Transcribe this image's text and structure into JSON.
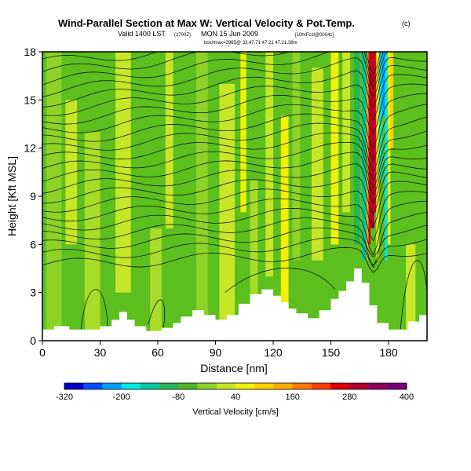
{
  "chart_data": {
    "type": "heatmap",
    "title": "Wind-Parallel Section at Max W: Vertical Velocity & Pot.Temp.",
    "title_suffix": "(c)",
    "subtitle_main": "Valid 1400 LST",
    "subtitle_paren": "(1700Z)",
    "subtitle_date": "MON 15 Jun 2009",
    "subtitle_tail": "[10hrFcst@0004z]",
    "info_line": "box/lmax=2965@ 33.47,71 47.21 47.21,38m",
    "xlabel": "Distance [nm]",
    "ylabel": "Height [Kft MSL]",
    "xlim": [
      0,
      200
    ],
    "ylim": [
      0,
      18
    ],
    "xticks": [
      0,
      30,
      60,
      90,
      120,
      150,
      180
    ],
    "yticks": [
      0,
      3,
      6,
      9,
      12,
      15,
      18
    ],
    "colorbar": {
      "label": "Vertical Velocity [cm/s]",
      "tick_labels": [
        "-320",
        "-200",
        "-80",
        "40",
        "160",
        "280",
        "400"
      ],
      "range": [
        -320,
        400
      ],
      "colors": [
        "#0000c8",
        "#0050ff",
        "#00a0ff",
        "#00e6e6",
        "#00c8a0",
        "#28b450",
        "#50b428",
        "#8cd228",
        "#c8e628",
        "#f0f00a",
        "#ffd200",
        "#ffaa00",
        "#ff7800",
        "#ff3c00",
        "#dc0000",
        "#b40032",
        "#8c0064",
        "#780078"
      ]
    },
    "updraft_core": {
      "distance": 172,
      "max_vertical_velocity": 400
    }
  }
}
